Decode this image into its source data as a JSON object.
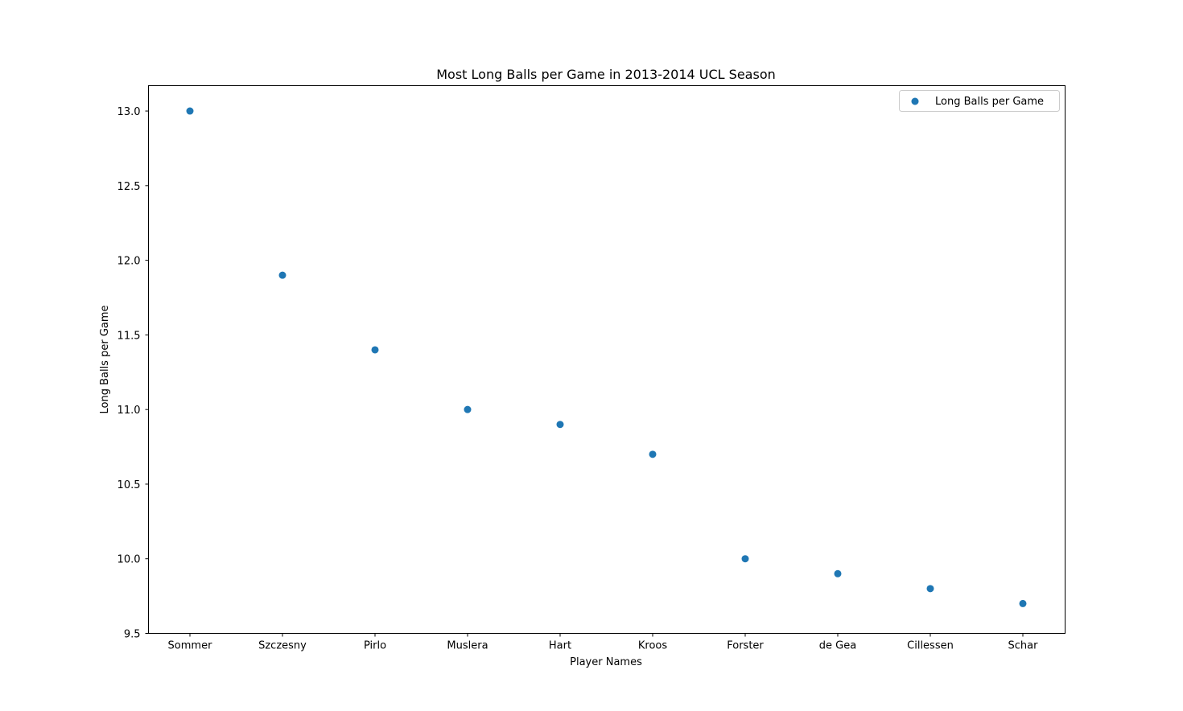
{
  "chart_data": {
    "type": "scatter",
    "title": "Most Long Balls per Game in 2013-2014 UCL Season",
    "xlabel": "Player Names",
    "ylabel": "Long Balls per Game",
    "categories": [
      "Sommer",
      "Szczesny",
      "Pirlo",
      "Muslera",
      "Hart",
      "Kroos",
      "Forster",
      "de Gea",
      "Cillessen",
      "Schar"
    ],
    "series": [
      {
        "name": "Long Balls per Game",
        "color": "#1f77b4",
        "values": [
          13.0,
          11.9,
          11.4,
          11.0,
          10.9,
          10.7,
          10.0,
          9.9,
          9.8,
          9.7
        ]
      }
    ],
    "ylim": [
      9.5,
      13.17
    ],
    "yticks": [
      "9.5",
      "10.0",
      "10.5",
      "11.0",
      "11.5",
      "12.0",
      "12.5",
      "13.0"
    ],
    "grid": false,
    "legend_position": "top-right"
  }
}
